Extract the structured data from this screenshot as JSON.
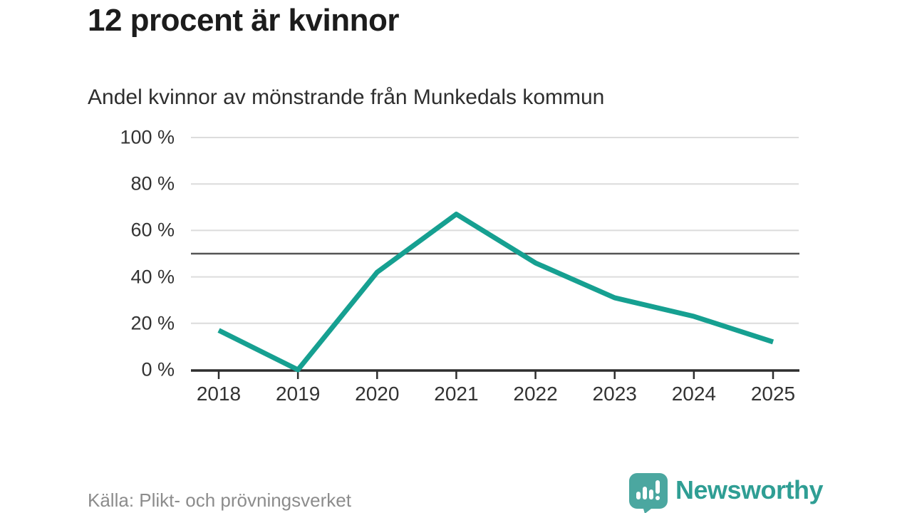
{
  "page": {
    "title": "12 procent är kvinnor",
    "subtitle": "Andel kvinnor av mönstrande från Munkedals kommun",
    "source": "Källa: Plikt- och prövningsverket",
    "brand": "Newsworthy"
  },
  "colors": {
    "line": "#16a091",
    "grid": "#dcdcdc",
    "reference_line": "#555555",
    "axis": "#2e2e2e",
    "tick_text": "#333333",
    "title_text": "#1c1c1c",
    "source_text": "#8c8c8c",
    "logo_bubble": "#4ba7a0",
    "logo_text": "#2f9e94"
  },
  "chart_data": {
    "type": "line",
    "title": "12 procent är kvinnor",
    "subtitle": "Andel kvinnor av mönstrande från Munkedals kommun",
    "x": [
      "2018",
      "2019",
      "2020",
      "2021",
      "2022",
      "2023",
      "2024",
      "2025"
    ],
    "series": [
      {
        "name": "Andel kvinnor av mönstrande",
        "values": [
          17,
          0,
          42,
          67,
          46,
          31,
          23,
          12
        ]
      }
    ],
    "unit": "%",
    "xlabel": "",
    "ylabel": "",
    "ylim": [
      0,
      100
    ],
    "yticks": [
      0,
      20,
      40,
      60,
      80,
      100
    ],
    "ytick_format": "{v} %",
    "reference_line": 50,
    "grid": "horizontal",
    "legend": "none"
  }
}
